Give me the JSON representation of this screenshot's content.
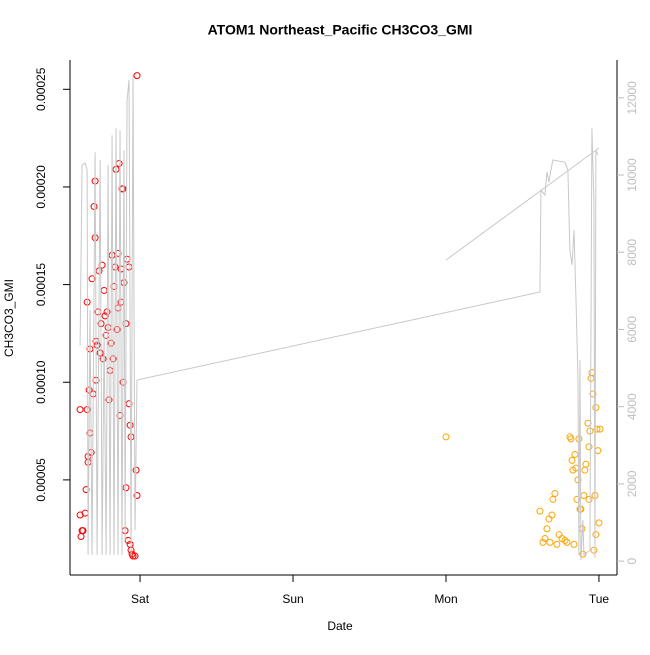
{
  "chart_data": {
    "type": "scatter",
    "title": "ATOM1 Northeast_Pacific CH3CO3_GMI",
    "xlabel": "Date",
    "ylabel": "CH3CO3_GMI",
    "xlim": [
      -0.458,
      3.118
    ],
    "xticks": [
      {
        "value": 0,
        "label": "Sat"
      },
      {
        "value": 1,
        "label": "Sun"
      },
      {
        "value": 2,
        "label": "Mon"
      },
      {
        "value": 3,
        "label": "Tue"
      }
    ],
    "ylim": [
      1.3e-06,
      0.000265
    ],
    "yticks": [
      5e-05,
      {
        "value": 0.0001,
        "label": "0.00010"
      },
      0.00015,
      {
        "value": 0.0002,
        "label": "0.00020"
      },
      0.00025
    ],
    "y2lim": [
      -360,
      12980
    ],
    "y2ticks": [
      0,
      2000,
      4000,
      6000,
      8000,
      10000,
      12000
    ],
    "y2color": "#bebebe",
    "series": [
      {
        "color": "#ff0000",
        "style": "points",
        "x": [
          -0.02,
          -0.392,
          -0.392,
          -0.386,
          -0.379,
          -0.373,
          -0.359,
          -0.353,
          -0.346,
          -0.346,
          -0.34,
          -0.34,
          -0.333,
          -0.327,
          -0.327,
          -0.32,
          -0.314,
          -0.307,
          -0.301,
          -0.294,
          -0.294,
          -0.288,
          -0.288,
          -0.281,
          -0.275,
          -0.268,
          -0.261,
          -0.255,
          -0.248,
          -0.242,
          -0.235,
          -0.229,
          -0.222,
          -0.216,
          -0.209,
          -0.203,
          -0.196,
          -0.19,
          -0.183,
          -0.176,
          -0.17,
          -0.163,
          -0.157,
          -0.15,
          -0.144,
          -0.137,
          -0.131,
          -0.124,
          -0.118,
          -0.111,
          -0.105,
          -0.098,
          -0.092,
          -0.085,
          -0.078,
          -0.072,
          -0.065,
          -0.059,
          -0.052,
          -0.046,
          -0.033,
          -0.026,
          -0.02,
          -0.059,
          -0.065,
          -0.072,
          -0.092,
          -0.111,
          -0.124,
          -0.144
        ],
        "values": [
          0.000257,
          8.6e-05,
          3.2e-05,
          2.1e-05,
          2.4e-05,
          2.4e-05,
          3.3e-05,
          4.5e-05,
          0.000141,
          8.6e-05,
          6.2e-05,
          5.9e-05,
          9.6e-05,
          7.4e-05,
          0.000117,
          6.4e-05,
          0.000153,
          9.4e-05,
          0.00019,
          0.000203,
          0.000174,
          0.000121,
          0.000101,
          0.000119,
          0.000136,
          0.000157,
          0.000115,
          0.00013,
          0.00016,
          0.000112,
          0.000147,
          0.000134,
          0.000124,
          0.000136,
          0.000128,
          9.1e-05,
          0.000106,
          0.00012,
          0.000165,
          0.000112,
          0.000149,
          0.000159,
          0.000209,
          0.000127,
          0.000166,
          0.000212,
          8.3e-05,
          0.000158,
          0.000199,
          0.0001,
          0.000151,
          2.4e-05,
          4.6e-05,
          0.000163,
          1.9e-05,
          0.000159,
          1.7e-05,
          1.4e-05,
          1.2e-05,
          1.1e-05,
          1.1e-05,
          5.5e-05,
          4.2e-05,
          7.2e-05,
          7.8e-05,
          8.9e-05,
          0.00013,
          0.000199,
          0.000141,
          0.000138
        ]
      },
      {
        "color": "#ffa500",
        "style": "points",
        "x": [
          2.0,
          2.614,
          2.634,
          2.647,
          2.66,
          2.673,
          2.68,
          2.693,
          2.699,
          2.712,
          2.725,
          2.739,
          2.758,
          2.778,
          2.791,
          2.81,
          2.817,
          2.824,
          2.83,
          2.837,
          2.843,
          2.85,
          2.856,
          2.863,
          2.869,
          2.876,
          2.882,
          2.889,
          2.895,
          2.902,
          2.908,
          2.915,
          2.928,
          2.935,
          2.941,
          2.948,
          2.954,
          2.961,
          2.967,
          2.974,
          2.98,
          2.987,
          2.993,
          3.0,
          3.007,
          2.98,
          2.935
        ],
        "values": [
          7.2e-05,
          3.4e-05,
          1.8e-05,
          2e-05,
          2.5e-05,
          3e-05,
          1.8e-05,
          3.2e-05,
          4e-05,
          4.3e-05,
          1.7e-05,
          2.2e-05,
          2e-05,
          1.9e-05,
          1.8e-05,
          7.2e-05,
          7.1e-05,
          6e-05,
          5.5e-05,
          1.7e-05,
          6.3e-05,
          5.6e-05,
          4e-05,
          5e-05,
          7.1e-05,
          3.5e-05,
          3.5e-05,
          2.5e-05,
          1.2e-05,
          4.2e-05,
          5.5e-05,
          5.8e-05,
          7.9e-05,
          6.7e-05,
          7.5e-05,
          0.000102,
          0.000105,
          9.4e-05,
          1.4e-05,
          4.2e-05,
          8.7e-05,
          7.6e-05,
          6.5e-05,
          2.8e-05,
          7.6e-05,
          2.2e-05,
          4e-05
        ]
      },
      {
        "color": "#c8c8c8",
        "style": "line",
        "axis": "y2",
        "x": [
          -0.392,
          -0.379,
          -0.359,
          -0.346,
          -0.34,
          -0.327,
          -0.314,
          -0.294,
          -0.281,
          -0.261,
          -0.248,
          -0.235,
          -0.222,
          -0.209,
          -0.196,
          -0.183,
          -0.17,
          -0.157,
          -0.144,
          -0.131,
          -0.118,
          -0.105,
          -0.098,
          -0.085,
          -0.072,
          -0.059,
          -0.046,
          -0.033,
          -0.02,
          2.614,
          2.621,
          2.647,
          2.66,
          2.673,
          2.686,
          2.699,
          2.778,
          2.797,
          2.81,
          2.824,
          2.837,
          2.85,
          2.863,
          2.869,
          2.876,
          2.882,
          2.895,
          2.902,
          2.941,
          2.954,
          2.967,
          2.974,
          2.98,
          2.993,
          null,
          2.0,
          3.0
        ],
        "values": [
          5590,
          10260,
          10310,
          10130,
          160,
          6500,
          160,
          10590,
          160,
          10390,
          160,
          5980,
          160,
          10260,
          160,
          11030,
          160,
          11210,
          160,
          11160,
          160,
          10640,
          540,
          11940,
          12460,
          160,
          12590,
          800,
          4690,
          6970,
          9610,
          9480,
          10080,
          9820,
          10130,
          10390,
          10330,
          10130,
          8050,
          7670,
          8570,
          6760,
          4690,
          160,
          5210,
          30,
          1060,
          160,
          280,
          11210,
          9350,
          80,
          10640,
          10520,
          null,
          7800,
          10700
        ]
      }
    ]
  }
}
